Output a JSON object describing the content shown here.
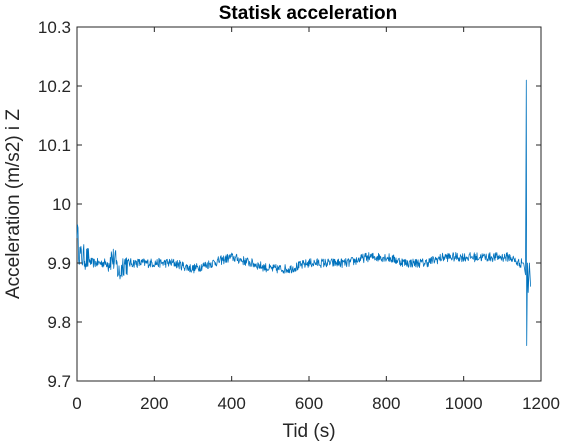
{
  "chart_data": {
    "type": "line",
    "title": "Statisk acceleration",
    "xlabel": "Tid (s)",
    "ylabel": "Acceleration (m/s2) i Z",
    "xlim": [
      0,
      1200
    ],
    "ylim": [
      9.7,
      10.3
    ],
    "xticks": [
      "0",
      "200",
      "400",
      "600",
      "800",
      "1000",
      "1200"
    ],
    "yticks": [
      "9.7",
      "9.8",
      "9.9",
      "10",
      "10.1",
      "10.2",
      "10.3"
    ],
    "grid": false,
    "color": "#0072BD",
    "series": [
      {
        "x": [
          0,
          5,
          10,
          20,
          40,
          60,
          80,
          90,
          100,
          110,
          120,
          150,
          200,
          250,
          300,
          350,
          400,
          450,
          500,
          550,
          600,
          650,
          700,
          750,
          800,
          850,
          900,
          950,
          1000,
          1050,
          1100,
          1120,
          1140,
          1155,
          1160,
          1162,
          1163,
          1165,
          1167,
          1170,
          1173
        ],
        "y": [
          9.96,
          9.92,
          9.91,
          9.91,
          9.9,
          9.9,
          9.9,
          9.91,
          9.9,
          9.88,
          9.9,
          9.9,
          9.9,
          9.9,
          9.89,
          9.9,
          9.91,
          9.9,
          9.89,
          9.89,
          9.9,
          9.9,
          9.9,
          9.91,
          9.91,
          9.9,
          9.9,
          9.91,
          9.91,
          9.91,
          9.91,
          9.91,
          9.9,
          9.9,
          9.88,
          10.21,
          9.76,
          9.9,
          9.85,
          9.9,
          9.86
        ]
      }
    ]
  }
}
